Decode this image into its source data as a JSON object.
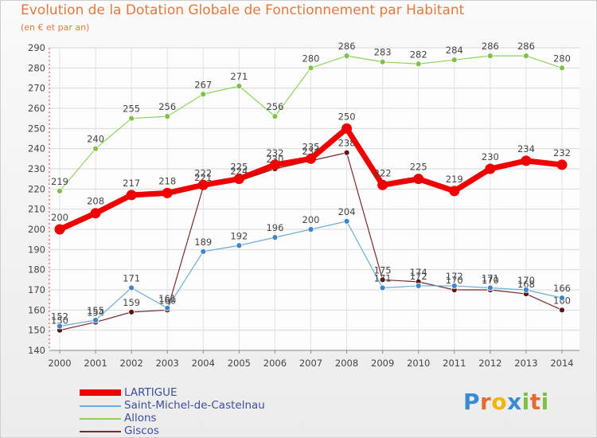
{
  "title": "Evolution de la Dotation Globale de Fonctionnement par Habitant",
  "subtitle": "(en € et par an)",
  "logo_text": "Proxiti",
  "chart_data": {
    "type": "line",
    "title": "Evolution de la Dotation Globale de Fonctionnement par Habitant",
    "subtitle": "(en € et par an)",
    "xlabel": "",
    "ylabel": "",
    "x": [
      "2000",
      "2001",
      "2002",
      "2003",
      "2004",
      "2005",
      "2006",
      "2007",
      "2008",
      "2009",
      "2010",
      "2011",
      "2012",
      "2013",
      "2014"
    ],
    "ylim": [
      140,
      290
    ],
    "yticks": [
      140,
      150,
      160,
      170,
      180,
      190,
      200,
      210,
      220,
      230,
      240,
      250,
      260,
      270,
      280,
      290
    ],
    "grid": true,
    "legend_position": "bottom-left",
    "series": [
      {
        "name": "Allons",
        "color": "#8fd45a",
        "dot": "#7ec24a",
        "width": 1.2,
        "values": [
          219,
          240,
          255,
          256,
          267,
          271,
          256,
          280,
          286,
          283,
          282,
          284,
          286,
          286,
          280
        ]
      },
      {
        "name": "Giscos",
        "color": "#7a2a2a",
        "dot": "#5c1414",
        "width": 1.2,
        "values": [
          150,
          154,
          159,
          160,
          221,
          224,
          230,
          234,
          238,
          175,
          174,
          170,
          170,
          168,
          160
        ]
      },
      {
        "name": "Saint-Michel-de-Castelnau",
        "color": "#6aaed6",
        "dot": "#3f86c8",
        "width": 1.2,
        "values": [
          152,
          155,
          171,
          161,
          189,
          192,
          196,
          200,
          204,
          171,
          172,
          172,
          171,
          170,
          166
        ]
      },
      {
        "name": "LARTIGUE",
        "color": "#ee0000",
        "dot": "#ee0000",
        "width": 7,
        "values": [
          200,
          208,
          217,
          218,
          222,
          225,
          232,
          235,
          250,
          222,
          225,
          219,
          230,
          234,
          232
        ]
      }
    ]
  },
  "legend": [
    {
      "name": "LARTIGUE",
      "color": "#ee0000"
    },
    {
      "name": "Saint-Michel-de-Castelnau",
      "color": "#6aaed6"
    },
    {
      "name": "Allons",
      "color": "#8fd45a"
    },
    {
      "name": "Giscos",
      "color": "#7a2a2a"
    }
  ],
  "logo_colors": {
    "P": "#3a8bd1",
    "r": "#e56b2d",
    "o": "#f4b400",
    "x": "#3a8bd1",
    "i": "#7cc142",
    "t": "#e56b2d",
    "i2": "#7cc142"
  }
}
